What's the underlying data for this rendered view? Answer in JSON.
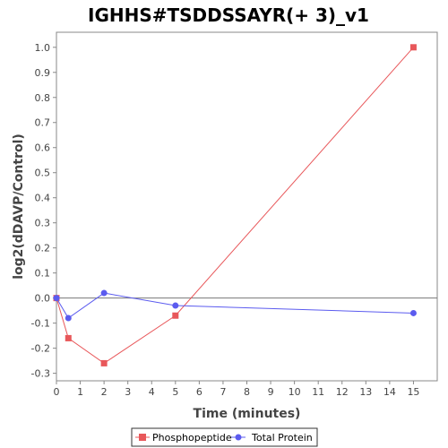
{
  "chart_data": {
    "type": "line",
    "title": "IGHHS#TSDDSSAYR(+ 3)_v1",
    "xlabel": "Time (minutes)",
    "ylabel": "log2(dDAVP/Control)",
    "xlim": [
      0,
      16
    ],
    "ylim": [
      -0.33,
      1.06
    ],
    "xticks": [
      0,
      1,
      2,
      3,
      4,
      5,
      6,
      7,
      8,
      9,
      10,
      11,
      12,
      13,
      14,
      15
    ],
    "yticks": [
      -0.3,
      -0.2,
      -0.1,
      0.0,
      0.1,
      0.2,
      0.3,
      0.4,
      0.5,
      0.6,
      0.7,
      0.8,
      0.9,
      1.0
    ],
    "ytick_labels": [
      "-0.3",
      "-0.2",
      "-0.1",
      "0.0",
      "0.1",
      "0.2",
      "0.3",
      "0.4",
      "0.5",
      "0.6",
      "0.7",
      "0.8",
      "0.9",
      "1.0"
    ],
    "zero_line": true,
    "grid": false,
    "legend_position": "bottom",
    "series": [
      {
        "name": "Phosphopeptide",
        "color": "#e8575a",
        "marker": "square",
        "x": [
          0,
          0.5,
          2,
          5,
          15
        ],
        "y": [
          0.0,
          -0.16,
          -0.26,
          -0.07,
          1.0
        ]
      },
      {
        "name": "Total Protein",
        "color": "#5b5bef",
        "marker": "circle",
        "x": [
          0,
          0.5,
          2,
          5,
          15
        ],
        "y": [
          0.0,
          -0.08,
          0.02,
          -0.03,
          -0.06
        ]
      }
    ]
  }
}
